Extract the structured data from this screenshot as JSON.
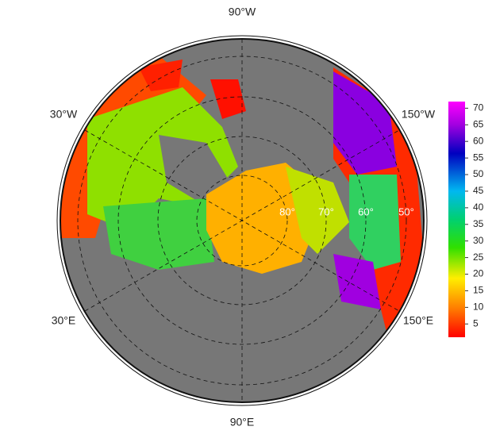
{
  "meridian_labels": [
    "90°W",
    "30°W",
    "150°W",
    "30°E",
    "150°E",
    "90°E"
  ],
  "parallel_labels": [
    "80°",
    "70°",
    "60°",
    "50°"
  ],
  "colorbar": {
    "lim": [
      1,
      72
    ],
    "ticks": [
      5,
      10,
      15,
      20,
      25,
      30,
      35,
      40,
      45,
      50,
      55,
      60,
      65,
      70
    ]
  }
}
